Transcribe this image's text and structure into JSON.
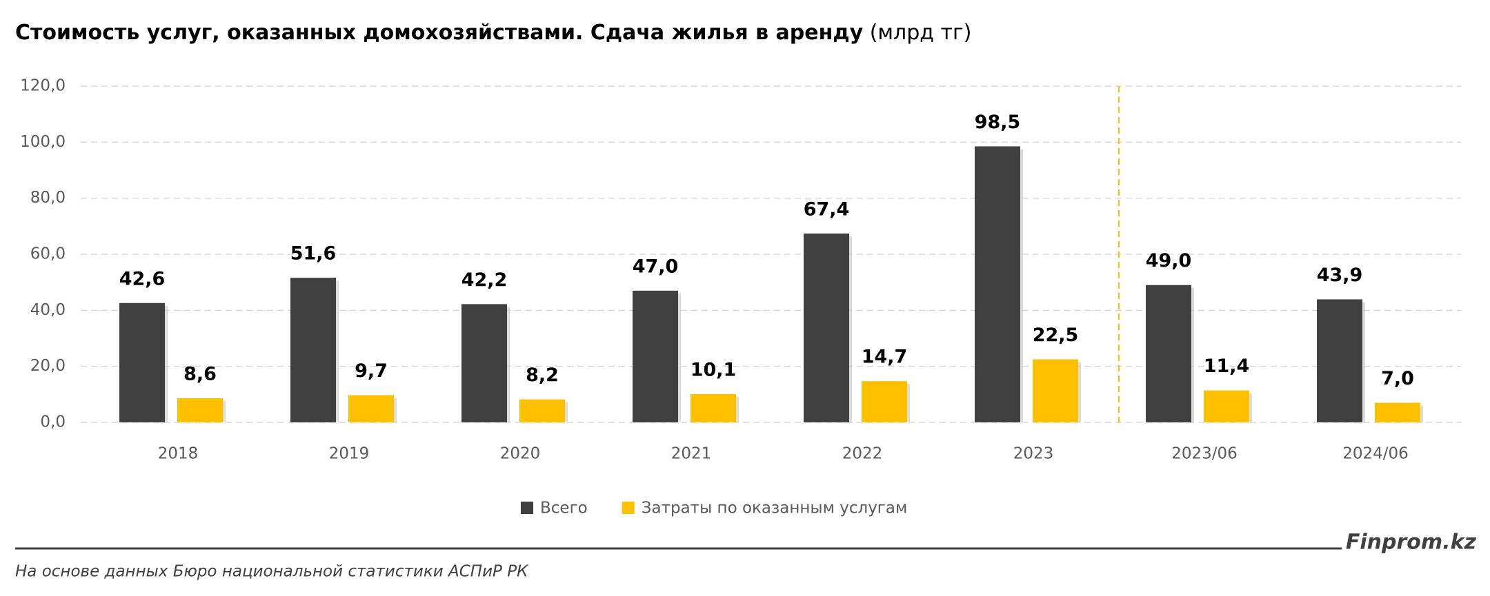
{
  "chart_data": {
    "type": "bar",
    "title": "Стоимость услуг, оказанных домохозяйствами. Сдача жилья в аренду",
    "unit": "(млрд тг)",
    "categories": [
      "2018",
      "2019",
      "2020",
      "2021",
      "2022",
      "2023",
      "2023/06",
      "2024/06"
    ],
    "series": [
      {
        "name": "Всего",
        "color": "#404040",
        "values": [
          42.6,
          51.6,
          42.2,
          47.0,
          67.4,
          98.5,
          49.0,
          43.9
        ],
        "value_labels": [
          "42,6",
          "51,6",
          "42,2",
          "47,0",
          "67,4",
          "98,5",
          "49,0",
          "43,9"
        ]
      },
      {
        "name": "Затраты по оказанным услугам",
        "color": "#ffc000",
        "values": [
          8.6,
          9.7,
          8.2,
          10.1,
          14.7,
          22.5,
          11.4,
          7.0
        ],
        "value_labels": [
          "8,6",
          "9,7",
          "8,2",
          "10,1",
          "14,7",
          "22,5",
          "11,4",
          "7,0"
        ]
      }
    ],
    "ylim": [
      0,
      120
    ],
    "yticks": [
      {
        "value": 0,
        "label": "0,0"
      },
      {
        "value": 20,
        "label": "20,0"
      },
      {
        "value": 40,
        "label": "40,0"
      },
      {
        "value": 60,
        "label": "60,0"
      },
      {
        "value": 80,
        "label": "80,0"
      },
      {
        "value": 100,
        "label": "100,0"
      },
      {
        "value": 120,
        "label": "120,0"
      }
    ],
    "grid": true,
    "legend": "bottom",
    "brand": "Finprom.kz",
    "source": "На основе данных Бюро национальной статистики АСПиР РК"
  }
}
